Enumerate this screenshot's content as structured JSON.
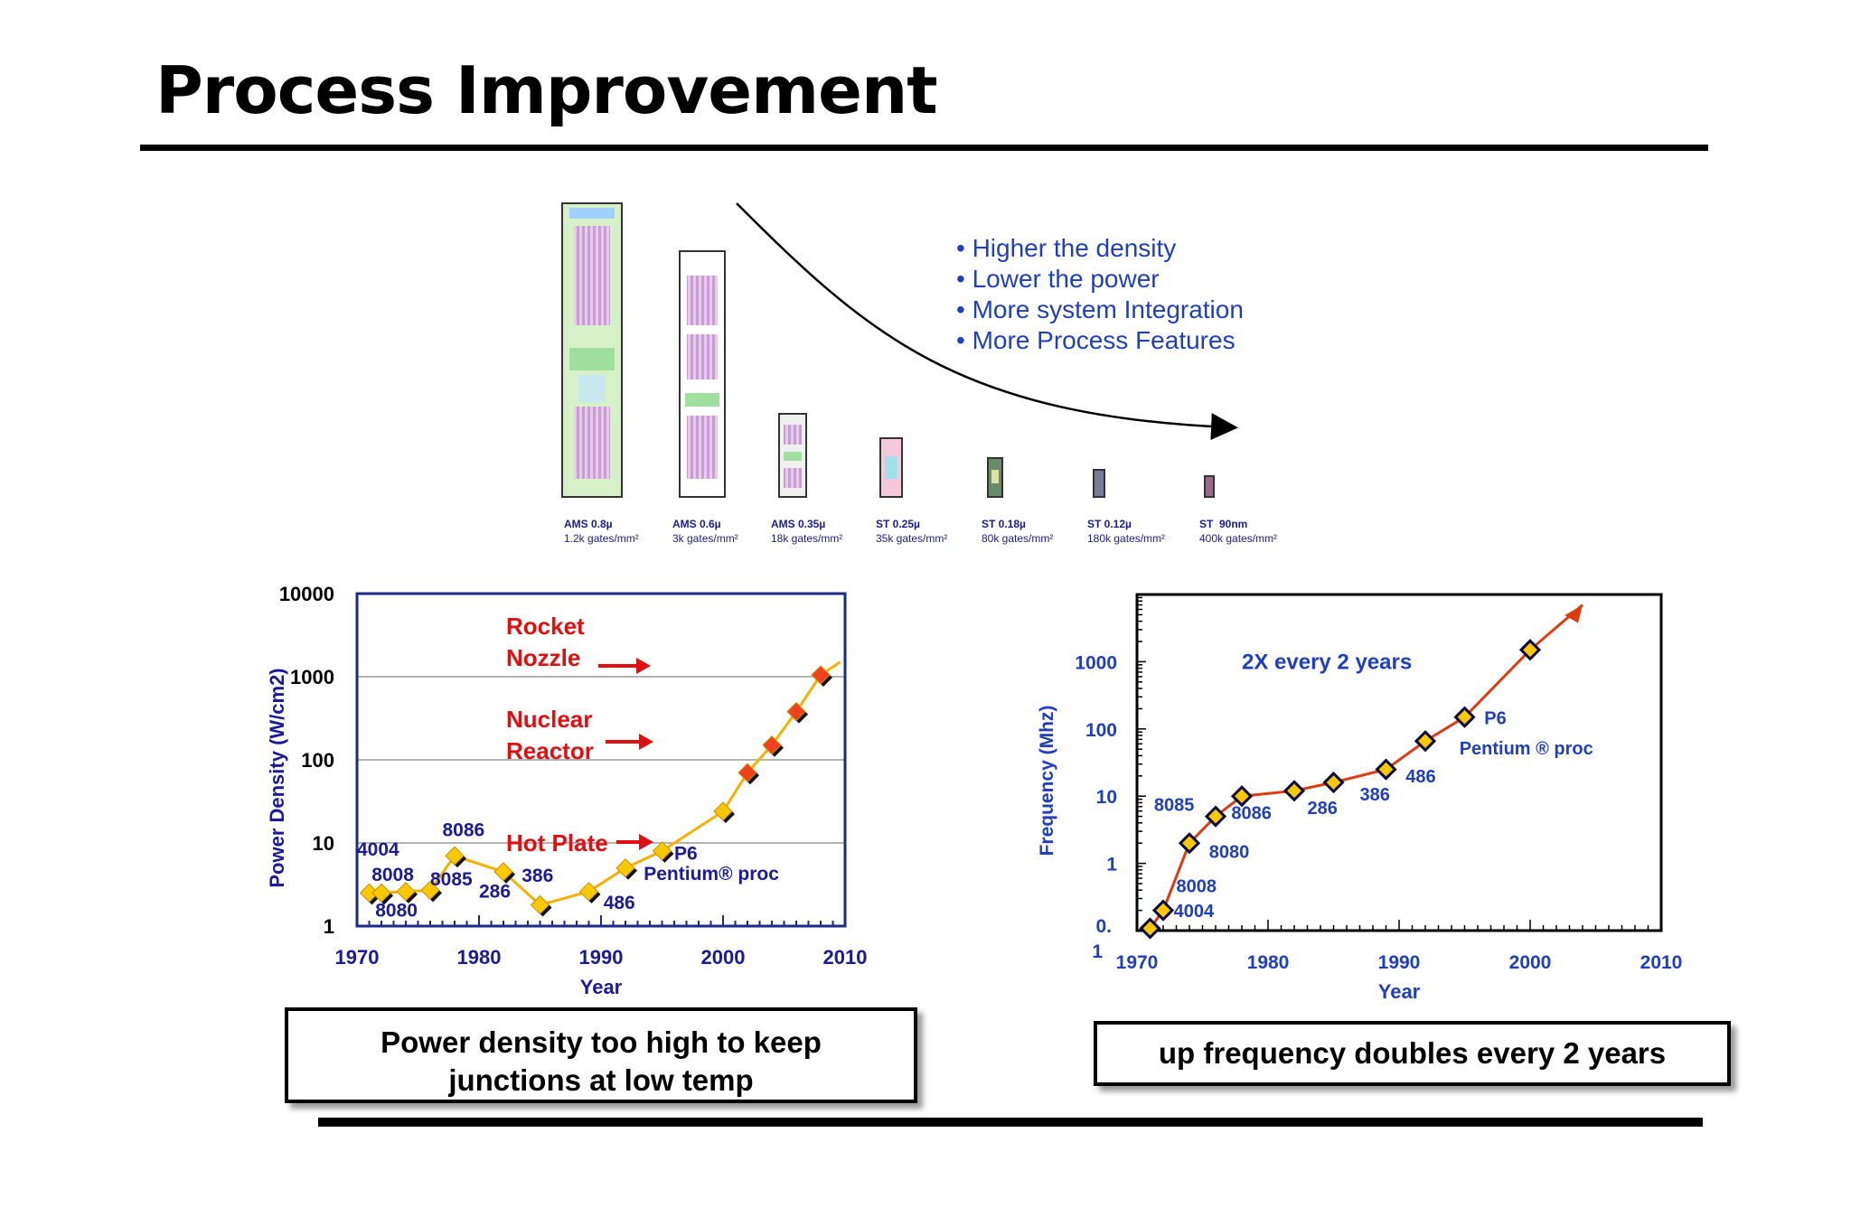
{
  "slide": {
    "title": "Process Improvement"
  },
  "layout_panel": {
    "bullets": [
      "• Higher the density",
      "• Lower the power",
      "• More system Integration",
      "• More Process Features"
    ],
    "cells": [
      {
        "process": "AMS 0.8µ",
        "density": "1.2k gates/mm²"
      },
      {
        "process": "AMS 0.6µ",
        "density": "3k gates/mm²"
      },
      {
        "process": "AMS 0.35µ",
        "density": "18k gates/mm²"
      },
      {
        "process": "ST 0.25µ",
        "density": "35k gates/mm²"
      },
      {
        "process": "ST 0.18µ",
        "density": "80k gates/mm²"
      },
      {
        "process": "ST 0.12µ",
        "density": "180k gates/mm²"
      },
      {
        "process": "ST  90nm",
        "density": "400k gates/mm²"
      }
    ]
  },
  "captions": {
    "power_line1": "Power density too high to keep",
    "power_line2": "junctions at low temp",
    "frequency": "up frequency doubles every 2 years"
  },
  "colors": {
    "series_power": "#f5b000",
    "series_freq": "#e03a10",
    "marker_fill": "#f8c800",
    "axis_label": "#1a1a9a",
    "annotation_red": "#e01010",
    "blue_label": "#1f3fbf"
  },
  "chart_data": [
    {
      "type": "line",
      "xlabel": "Year",
      "ylabel": "Power Density (W/cm2)",
      "yscale": "log",
      "xlim": [
        1970,
        2010
      ],
      "ylim": [
        1,
        10000
      ],
      "x_ticks": [
        "1970",
        "1980",
        "1990",
        "2000",
        "2010"
      ],
      "y_ticks": [
        "1",
        "10",
        "100",
        "1000",
        "10000"
      ],
      "grid": "horizontal at 10, 100, 1000",
      "series": [
        {
          "x": [
            1971,
            1972,
            1974,
            1976,
            1978,
            1982,
            1985,
            1989,
            1992,
            1995,
            2000,
            2002,
            2004,
            2006,
            2008
          ],
          "y": [
            2.5,
            2.5,
            2.6,
            2.7,
            7,
            4.5,
            1.8,
            2.6,
            5,
            8,
            24,
            70,
            150,
            380,
            1050
          ]
        }
      ],
      "point_labels": [
        "4004",
        "8008",
        "8080",
        "8085",
        "8086",
        "286",
        "386",
        "486",
        "P6",
        "Pentium® proc"
      ],
      "annotations": [
        "Rocket",
        "Nozzle",
        "Nuclear",
        "Reactor",
        "Hot Plate"
      ]
    },
    {
      "type": "line",
      "xlabel": "Year",
      "ylabel": "Frequency (Mhz)",
      "yscale": "log",
      "xlim": [
        1970,
        2010
      ],
      "ylim": [
        0.1,
        10000
      ],
      "x_ticks": [
        "1970",
        "1980",
        "1990",
        "2000",
        "2010"
      ],
      "y_ticks": [
        "0.\n1",
        "1",
        "10",
        "100",
        "1000"
      ],
      "grid": false,
      "series": [
        {
          "x": [
            1971,
            1972,
            1974,
            1976,
            1978,
            1982,
            1985,
            1989,
            1992,
            1995,
            2000,
            2004
          ],
          "y": [
            0.108,
            0.2,
            2,
            5,
            10,
            12,
            16,
            25,
            66,
            150,
            1500,
            7000
          ]
        }
      ],
      "point_labels": [
        "4004",
        "8008",
        "8080",
        "8085",
        "8086",
        "286",
        "386",
        "486",
        "P6",
        "Pentium ® proc"
      ],
      "annotations": [
        "2X every 2 years"
      ]
    }
  ]
}
